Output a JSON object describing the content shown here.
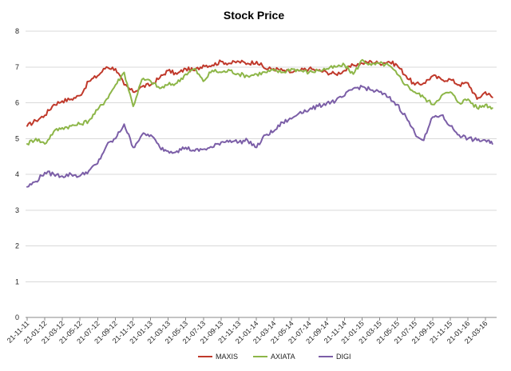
{
  "chart_data": {
    "type": "line",
    "title": "Stock Price",
    "xlabel": "",
    "ylabel": "",
    "ylim": [
      0,
      8
    ],
    "yticks": [
      0,
      1,
      2,
      3,
      4,
      5,
      6,
      7,
      8
    ],
    "grid": true,
    "legend_position": "bottom",
    "x_tick_labels": [
      "21-11-11",
      "21-01-12",
      "21-03-12",
      "21-05-12",
      "21-07-12",
      "21-09-12",
      "21-11-12",
      "21-01-13",
      "21-03-13",
      "21-05-13",
      "21-07-13",
      "21-09-13",
      "21-11-13",
      "21-01-14",
      "21-03-14",
      "21-05-14",
      "21-07-14",
      "21-09-14",
      "21-11-14",
      "21-01-15",
      "21-03-15",
      "21-05-15",
      "21-07-15",
      "21-09-15",
      "21-11-15",
      "21-01-16",
      "21-03-16"
    ],
    "series": [
      {
        "name": "MAXIS",
        "color": "#c0392b",
        "x": [
          "21-11-11",
          "21-12-11",
          "21-01-12",
          "21-02-12",
          "21-03-12",
          "21-04-12",
          "21-05-12",
          "21-06-12",
          "21-07-12",
          "21-08-12",
          "21-09-12",
          "21-10-12",
          "21-11-12",
          "21-12-12",
          "21-01-13",
          "21-02-13",
          "21-03-13",
          "21-04-13",
          "21-05-13",
          "21-06-13",
          "21-07-13",
          "21-08-13",
          "21-09-13",
          "21-10-13",
          "21-11-13",
          "21-12-13",
          "21-01-14",
          "21-02-14",
          "21-03-14",
          "21-04-14",
          "21-05-14",
          "21-06-14",
          "21-07-14",
          "21-08-14",
          "21-09-14",
          "21-10-14",
          "21-11-14",
          "21-12-14",
          "21-01-15",
          "21-02-15",
          "21-03-15",
          "21-04-15",
          "21-05-15",
          "21-06-15",
          "21-07-15",
          "21-08-15",
          "21-09-15",
          "21-10-15",
          "21-11-15",
          "21-12-15",
          "21-01-16",
          "21-02-16",
          "21-03-16",
          "14-04-16"
        ],
        "values": [
          5.35,
          5.5,
          5.65,
          5.95,
          6.05,
          6.1,
          6.2,
          6.6,
          6.75,
          7.0,
          6.95,
          6.5,
          6.3,
          6.45,
          6.5,
          6.7,
          6.9,
          6.8,
          6.95,
          6.9,
          7.05,
          7.05,
          7.15,
          7.1,
          7.15,
          7.1,
          7.15,
          6.95,
          6.95,
          6.9,
          6.85,
          6.9,
          6.95,
          6.9,
          6.85,
          6.8,
          6.9,
          7.05,
          7.1,
          7.15,
          7.1,
          7.15,
          7.05,
          6.75,
          6.5,
          6.55,
          6.75,
          6.65,
          6.65,
          6.5,
          6.55,
          6.1,
          6.3,
          6.15
        ]
      },
      {
        "name": "AXIATA",
        "color": "#8db648",
        "x": [
          "21-11-11",
          "21-12-11",
          "21-01-12",
          "21-02-12",
          "21-03-12",
          "21-04-12",
          "21-05-12",
          "21-06-12",
          "21-07-12",
          "21-08-12",
          "21-09-12",
          "21-10-12",
          "21-11-12",
          "21-12-12",
          "21-01-13",
          "21-02-13",
          "21-03-13",
          "21-04-13",
          "21-05-13",
          "21-06-13",
          "21-07-13",
          "21-08-13",
          "21-09-13",
          "21-10-13",
          "21-11-13",
          "21-12-13",
          "21-01-14",
          "21-02-14",
          "21-03-14",
          "21-04-14",
          "21-05-14",
          "21-06-14",
          "21-07-14",
          "21-08-14",
          "21-09-14",
          "21-10-14",
          "21-11-14",
          "21-12-14",
          "21-01-15",
          "21-02-15",
          "21-03-15",
          "21-04-15",
          "21-05-15",
          "21-06-15",
          "21-07-15",
          "21-08-15",
          "21-09-15",
          "21-10-15",
          "21-11-15",
          "21-12-15",
          "21-01-16",
          "21-02-16",
          "21-03-16",
          "14-04-16"
        ],
        "values": [
          4.85,
          5.0,
          4.85,
          5.2,
          5.3,
          5.35,
          5.4,
          5.5,
          5.8,
          6.1,
          6.5,
          6.85,
          5.9,
          6.65,
          6.6,
          6.4,
          6.5,
          6.55,
          6.8,
          6.95,
          6.6,
          6.9,
          6.85,
          6.9,
          6.8,
          6.75,
          6.8,
          6.85,
          6.9,
          6.85,
          6.95,
          6.9,
          6.85,
          6.9,
          6.95,
          7.0,
          7.05,
          6.8,
          7.2,
          7.05,
          7.1,
          7.05,
          6.8,
          6.5,
          6.3,
          6.15,
          5.95,
          6.2,
          6.3,
          6.0,
          6.1,
          5.85,
          5.95,
          5.85
        ]
      },
      {
        "name": "DIGI",
        "color": "#7b5ea7",
        "x": [
          "21-11-11",
          "21-12-11",
          "21-01-12",
          "21-02-12",
          "21-03-12",
          "21-04-12",
          "21-05-12",
          "21-06-12",
          "21-07-12",
          "21-08-12",
          "21-09-12",
          "21-10-12",
          "21-11-12",
          "21-12-12",
          "21-01-13",
          "21-02-13",
          "21-03-13",
          "21-04-13",
          "21-05-13",
          "21-06-13",
          "21-07-13",
          "21-08-13",
          "21-09-13",
          "21-10-13",
          "21-11-13",
          "21-12-13",
          "21-01-14",
          "21-02-14",
          "21-03-14",
          "21-04-14",
          "21-05-14",
          "21-06-14",
          "21-07-14",
          "21-08-14",
          "21-09-14",
          "21-10-14",
          "21-11-14",
          "21-12-14",
          "21-01-15",
          "21-02-15",
          "21-03-15",
          "21-04-15",
          "21-05-15",
          "21-06-15",
          "21-07-15",
          "21-08-15",
          "21-09-15",
          "21-10-15",
          "21-11-15",
          "21-12-15",
          "21-01-16",
          "21-02-16",
          "21-03-16",
          "14-04-16"
        ],
        "values": [
          3.65,
          3.8,
          4.05,
          4.0,
          3.95,
          4.0,
          3.95,
          4.1,
          4.3,
          4.8,
          5.0,
          5.4,
          4.75,
          5.1,
          5.1,
          4.75,
          4.65,
          4.65,
          4.75,
          4.65,
          4.7,
          4.75,
          4.9,
          4.95,
          4.9,
          4.95,
          4.75,
          5.1,
          5.2,
          5.45,
          5.55,
          5.75,
          5.8,
          5.9,
          6.0,
          6.05,
          6.2,
          6.4,
          6.45,
          6.35,
          6.3,
          6.15,
          5.95,
          5.6,
          5.15,
          4.95,
          5.6,
          5.65,
          5.35,
          5.1,
          5.0,
          4.95,
          4.95,
          4.85
        ]
      }
    ]
  }
}
